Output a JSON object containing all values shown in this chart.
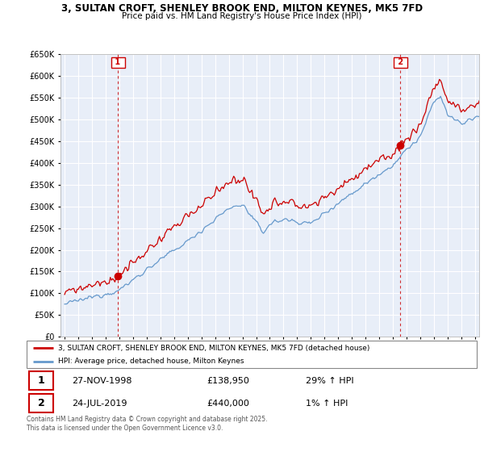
{
  "title": "3, SULTAN CROFT, SHENLEY BROOK END, MILTON KEYNES, MK5 7FD",
  "subtitle": "Price paid vs. HM Land Registry's House Price Index (HPI)",
  "legend_label_red": "3, SULTAN CROFT, SHENLEY BROOK END, MILTON KEYNES, MK5 7FD (detached house)",
  "legend_label_blue": "HPI: Average price, detached house, Milton Keynes",
  "footnote": "Contains HM Land Registry data © Crown copyright and database right 2025.\nThis data is licensed under the Open Government Licence v3.0.",
  "sale1_label": "1",
  "sale1_date": "27-NOV-1998",
  "sale1_price": "£138,950",
  "sale1_hpi": "29% ↑ HPI",
  "sale2_label": "2",
  "sale2_date": "24-JUL-2019",
  "sale2_price": "£440,000",
  "sale2_hpi": "1% ↑ HPI",
  "ylim": [
    0,
    650000
  ],
  "yticks": [
    0,
    50000,
    100000,
    150000,
    200000,
    250000,
    300000,
    350000,
    400000,
    450000,
    500000,
    550000,
    600000,
    650000
  ],
  "sale1_year": 1998.9,
  "sale1_price_val": 138950,
  "sale2_year": 2019.55,
  "sale2_price_val": 440000,
  "red_color": "#cc0000",
  "blue_color": "#6699cc",
  "plot_bg_color": "#e8eef8",
  "grid_color": "#ffffff",
  "xlim_left": 1995.0,
  "xlim_right": 2025.3
}
